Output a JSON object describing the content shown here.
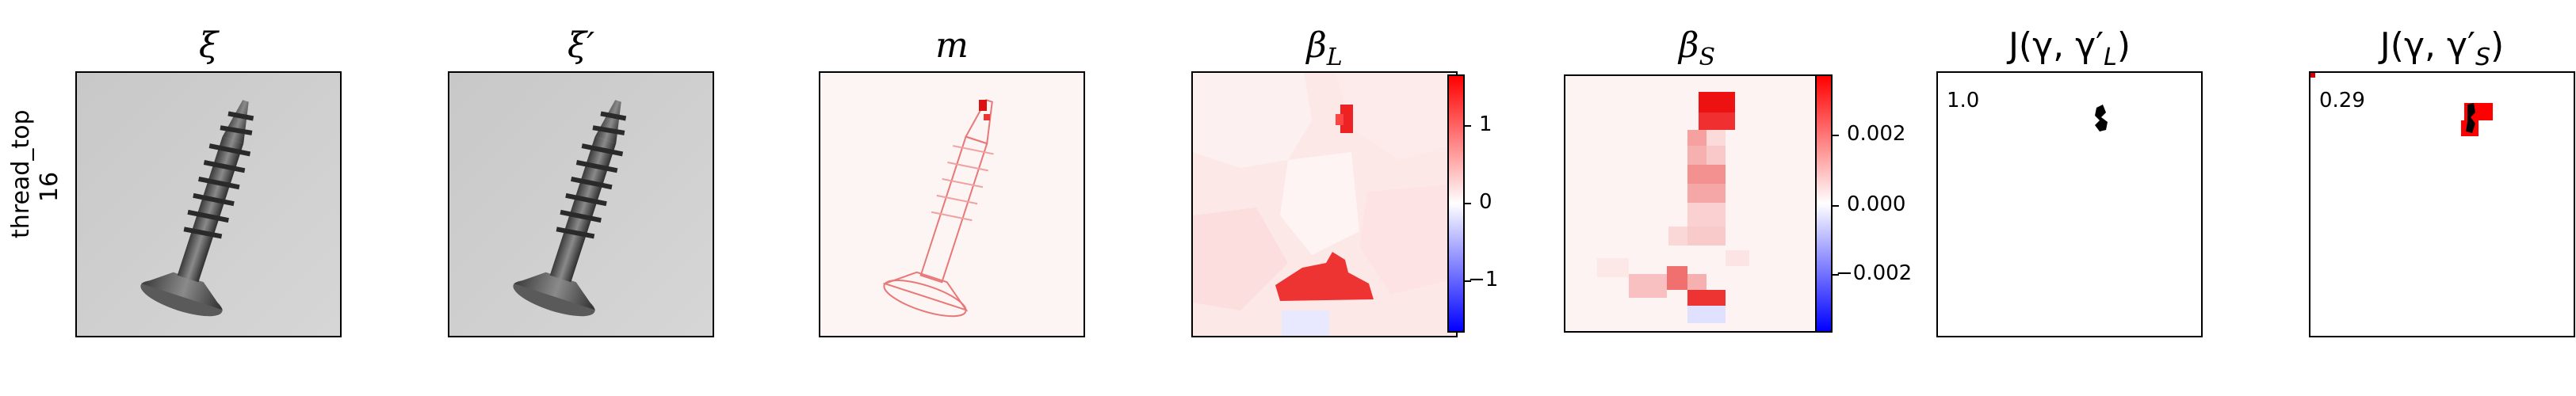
{
  "row": {
    "label_line1": "thread_top",
    "label_line2": "16"
  },
  "panels": [
    {
      "title": "ξ"
    },
    {
      "title": "ξ′"
    },
    {
      "title": "m"
    },
    {
      "title": "β",
      "sub": "L"
    },
    {
      "title": "β",
      "sub": "S"
    },
    {
      "title": "J(γ, γ′",
      "sub": "L",
      "close": ")"
    },
    {
      "title": "J(γ, γ′",
      "sub": "S",
      "close": ")"
    }
  ],
  "colorbar_L": {
    "ticks": [
      "1",
      "0",
      "−1"
    ]
  },
  "colorbar_S": {
    "ticks": [
      "0.002",
      "0.000",
      "−0.002"
    ]
  },
  "jaccard_L": {
    "value": "1.0"
  },
  "jaccard_S": {
    "value": "0.29"
  },
  "colors": {
    "pos": "#ff0000",
    "neutral": "#ffffff",
    "neg": "#0000ff"
  }
}
